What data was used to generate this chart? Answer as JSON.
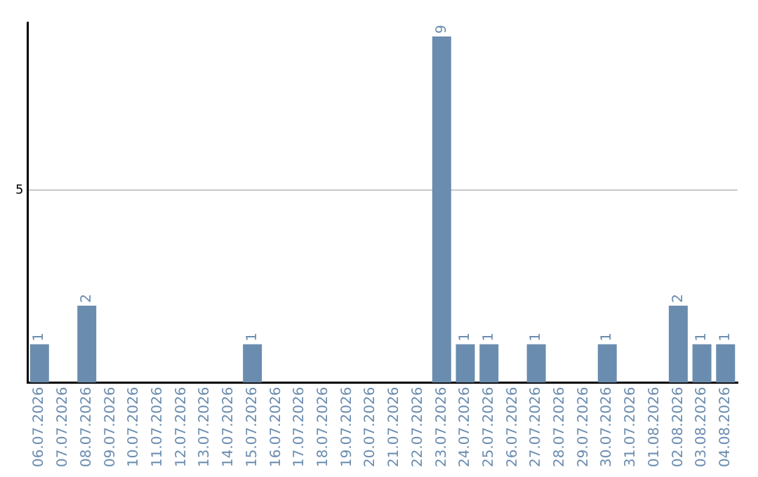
{
  "chart_data": {
    "type": "bar",
    "categories": [
      "06.07.2026",
      "07.07.2026",
      "08.07.2026",
      "09.07.2026",
      "10.07.2026",
      "11.07.2026",
      "12.07.2026",
      "13.07.2026",
      "14.07.2026",
      "15.07.2026",
      "16.07.2026",
      "17.07.2026",
      "18.07.2026",
      "19.07.2026",
      "20.07.2026",
      "21.07.2026",
      "22.07.2026",
      "23.07.2026",
      "24.07.2026",
      "25.07.2026",
      "26.07.2026",
      "27.07.2026",
      "28.07.2026",
      "29.07.2026",
      "30.07.2026",
      "31.07.2026",
      "01.08.2026",
      "02.08.2026",
      "03.08.2026",
      "04.08.2026"
    ],
    "values": [
      1,
      0,
      2,
      0,
      0,
      0,
      0,
      0,
      0,
      1,
      0,
      0,
      0,
      0,
      0,
      0,
      0,
      9,
      1,
      1,
      0,
      1,
      0,
      0,
      1,
      0,
      0,
      2,
      1,
      1
    ],
    "value_labels": [
      "1",
      null,
      "2",
      null,
      null,
      null,
      null,
      null,
      null,
      "1",
      null,
      null,
      null,
      null,
      null,
      null,
      null,
      "9",
      "1",
      "1",
      null,
      "1",
      null,
      null,
      "1",
      null,
      null,
      "2",
      "1",
      "1"
    ],
    "color": "#6a8caf",
    "ylim": [
      0,
      9.35
    ],
    "yticks": [
      5
    ],
    "grid": "y",
    "legend": false
  }
}
